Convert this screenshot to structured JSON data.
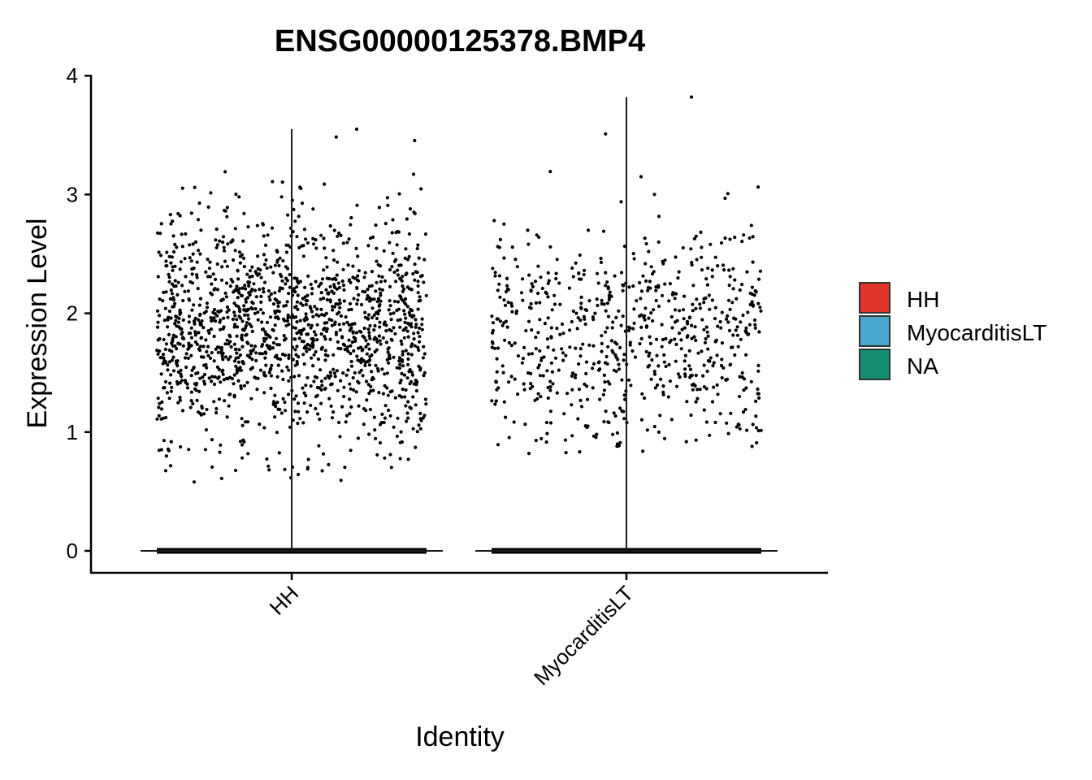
{
  "chart_data": {
    "type": "scatter",
    "subtype": "violin-with-jitter",
    "title": "ENSG00000125378.BMP4",
    "xlabel": "Identity",
    "ylabel": "Expression Level",
    "ylim": [
      -0.18,
      4.05
    ],
    "yticks": [
      "0",
      "1",
      "2",
      "3",
      "4"
    ],
    "categories": [
      "HH",
      "MyocarditisLT"
    ],
    "x_tick_rotation": "45 degrees",
    "grid": false,
    "legend": {
      "placement": "right",
      "entries": [
        {
          "label": "HH",
          "color": "#E0352B"
        },
        {
          "label": "MyocarditisLT",
          "color": "#48A7CC"
        },
        {
          "label": "NA",
          "color": "#148F73"
        }
      ]
    },
    "groups": [
      {
        "name": "HH",
        "max_expression": 3.55,
        "n_nonzero_points_approx": 1500,
        "nonzero_range": [
          0.58,
          3.55
        ],
        "nonzero_center": 1.85,
        "zero_cells": "many"
      },
      {
        "name": "MyocarditisLT",
        "max_expression": 3.82,
        "n_nonzero_points_approx": 700,
        "nonzero_range": [
          0.82,
          3.82
        ],
        "nonzero_center": 1.8,
        "zero_cells": "many"
      }
    ],
    "point_color": "#000000"
  }
}
